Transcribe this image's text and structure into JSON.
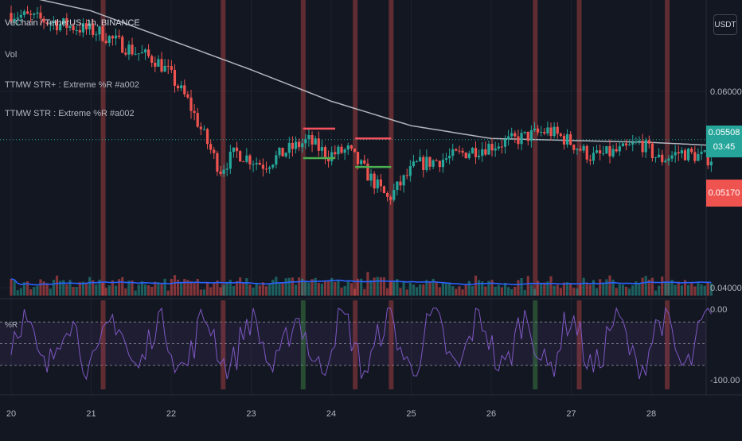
{
  "header": {
    "symbol_title": "VeChain / TetherUS, 1h, BINANCE",
    "indicator_vol": "Vol",
    "indicator_str_plus": "TTMW STR+ : Extreme %R #a002",
    "indicator_str": "TTMW STR : Extreme %R #a002",
    "currency_button": "USDT"
  },
  "price_tags": {
    "last_price": "0.05508",
    "countdown": "03:45",
    "low_price": "0.05170"
  },
  "oscillator": {
    "label": "%R"
  },
  "colors": {
    "background": "#131722",
    "up": "#26a69a",
    "down": "#ef5350",
    "ma": "#b2b5be",
    "volume_ma": "#2962ff",
    "wr_line": "#7e57c2",
    "signal_green": "#4caf50",
    "signal_red": "#f7525f"
  },
  "chart_data": [
    {
      "type": "candlestick",
      "title": "VeChain / TetherUS, 1h, BINANCE",
      "y_axis_ticks": [
        0.06,
        0.04
      ],
      "y_tick_labels": [
        "0.06000",
        "0.04000"
      ],
      "x_tick_labels": [
        "20",
        "21",
        "22",
        "23",
        "24",
        "25",
        "26",
        "27",
        "28"
      ],
      "last_price": 0.05508,
      "key_points": [
        {
          "day": 20.0,
          "price": 0.068
        },
        {
          "day": 21.15,
          "price": 0.066
        },
        {
          "day": 21.25,
          "price": 0.0655
        },
        {
          "day": 21.6,
          "price": 0.064
        },
        {
          "day": 21.85,
          "price": 0.0632
        },
        {
          "day": 22.0,
          "price": 0.062
        },
        {
          "day": 22.25,
          "price": 0.059
        },
        {
          "day": 22.45,
          "price": 0.0555
        },
        {
          "day": 22.65,
          "price": 0.052
        },
        {
          "day": 22.85,
          "price": 0.0538
        },
        {
          "day": 23.2,
          "price": 0.0525
        },
        {
          "day": 23.5,
          "price": 0.054
        },
        {
          "day": 23.75,
          "price": 0.055
        },
        {
          "day": 24.0,
          "price": 0.0535
        },
        {
          "day": 24.25,
          "price": 0.054
        },
        {
          "day": 24.45,
          "price": 0.052
        },
        {
          "day": 24.75,
          "price": 0.049
        },
        {
          "day": 25.1,
          "price": 0.0525
        },
        {
          "day": 25.5,
          "price": 0.0532
        },
        {
          "day": 25.8,
          "price": 0.054
        },
        {
          "day": 26.3,
          "price": 0.055
        },
        {
          "day": 26.75,
          "price": 0.056
        },
        {
          "day": 27.0,
          "price": 0.055
        },
        {
          "day": 27.3,
          "price": 0.0533
        },
        {
          "day": 27.7,
          "price": 0.054
        },
        {
          "day": 27.9,
          "price": 0.0548
        },
        {
          "day": 28.15,
          "price": 0.053
        },
        {
          "day": 28.4,
          "price": 0.0538
        },
        {
          "day": 28.75,
          "price": 0.0532
        }
      ],
      "moving_average": [
        {
          "day": 20.0,
          "price": 0.07
        },
        {
          "day": 21.0,
          "price": 0.0682
        },
        {
          "day": 22.0,
          "price": 0.0652
        },
        {
          "day": 23.0,
          "price": 0.0622
        },
        {
          "day": 24.0,
          "price": 0.059
        },
        {
          "day": 25.0,
          "price": 0.0565
        },
        {
          "day": 26.0,
          "price": 0.0552
        },
        {
          "day": 27.0,
          "price": 0.055
        },
        {
          "day": 28.0,
          "price": 0.0548
        },
        {
          "day": 28.75,
          "price": 0.0545
        }
      ],
      "signal_levels": [
        {
          "color": "red",
          "from": 23.65,
          "to": 24.05,
          "price": 0.0562
        },
        {
          "color": "green",
          "from": 23.65,
          "to": 24.05,
          "price": 0.0532
        },
        {
          "color": "red",
          "from": 24.3,
          "to": 24.75,
          "price": 0.0552
        },
        {
          "color": "green",
          "from": 24.3,
          "to": 24.75,
          "price": 0.0523
        }
      ],
      "signal_markers": [
        21.15,
        22.65,
        23.65,
        24.3,
        24.75,
        26.55,
        27.1,
        28.2
      ]
    },
    {
      "type": "line",
      "title": "%R",
      "y_tick_labels": [
        "0.00",
        "-100.00"
      ],
      "ylim": [
        -100,
        0
      ],
      "levels": [
        -20,
        -50,
        -80
      ]
    }
  ]
}
